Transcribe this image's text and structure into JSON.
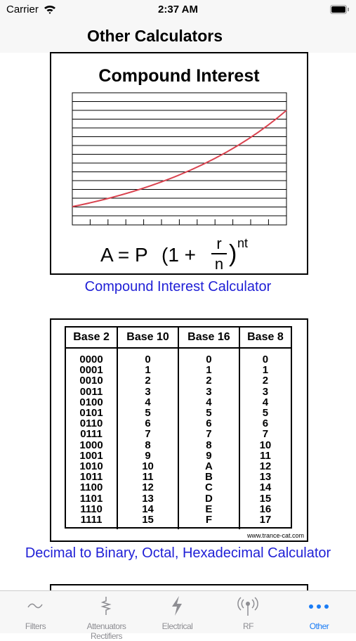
{
  "status_bar": {
    "carrier": "Carrier",
    "time": "2:37 AM"
  },
  "nav": {
    "title": "Other Calculators"
  },
  "cards": [
    {
      "image": {
        "title": "Compound Interest",
        "formula": {
          "lhs": "A = P",
          "open": "(1 +",
          "numerator": "r",
          "denominator": "n",
          "close": ")",
          "exponent": "nt"
        }
      },
      "link": "Compound Interest Calculator"
    },
    {
      "image": {
        "headers": [
          "Base 2",
          "Base 10",
          "Base 16",
          "Base 8"
        ],
        "rows": [
          [
            "0000",
            "0",
            "0",
            "0"
          ],
          [
            "0001",
            "1",
            "1",
            "1"
          ],
          [
            "0010",
            "2",
            "2",
            "2"
          ],
          [
            "0011",
            "3",
            "3",
            "3"
          ],
          [
            "0100",
            "4",
            "4",
            "4"
          ],
          [
            "0101",
            "5",
            "5",
            "5"
          ],
          [
            "0110",
            "6",
            "6",
            "6"
          ],
          [
            "0111",
            "7",
            "7",
            "7"
          ],
          [
            "1000",
            "8",
            "8",
            "10"
          ],
          [
            "1001",
            "9",
            "9",
            "11"
          ],
          [
            "1010",
            "10",
            "A",
            "12"
          ],
          [
            "1011",
            "11",
            "B",
            "13"
          ],
          [
            "1100",
            "12",
            "C",
            "14"
          ],
          [
            "1101",
            "13",
            "D",
            "15"
          ],
          [
            "1110",
            "14",
            "E",
            "16"
          ],
          [
            "1111",
            "15",
            "F",
            "17"
          ]
        ],
        "credit": "www.trance-cat.com"
      },
      "link": "Decimal to Binary, Octal, Hexadecimal Calculator"
    }
  ],
  "tabs": [
    "Filters",
    "Attenuators Rectifiers",
    "Electrical",
    "RF",
    "Other"
  ]
}
